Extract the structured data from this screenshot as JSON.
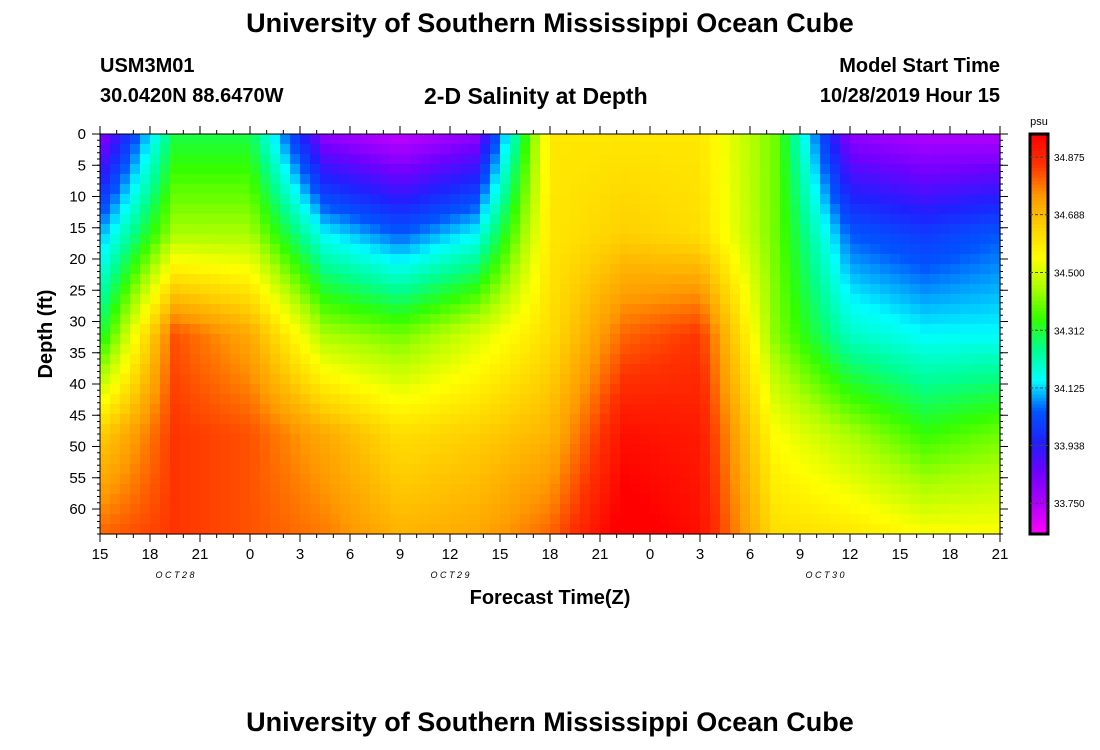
{
  "header": {
    "title": "University of Southern Mississippi Ocean Cube",
    "station_id": "USM3M01",
    "station_coords": "30.0420N 88.6470W",
    "plot_title": "2-D Salinity at Depth",
    "start_label": "Model Start Time",
    "start_value": "10/28/2019 Hour 15"
  },
  "footer": {
    "title": "University of Southern Mississippi Ocean Cube"
  },
  "chart_data": {
    "type": "heatmap",
    "title": "2-D Salinity at Depth",
    "xlabel": "Forecast Time(Z)",
    "ylabel": "Depth (ft)",
    "x_range_hours": [
      0,
      54
    ],
    "x_tick_labels": [
      "15",
      "18",
      "21",
      "0",
      "3",
      "6",
      "9",
      "12",
      "15",
      "18",
      "21",
      "0",
      "3",
      "6",
      "9",
      "12",
      "15",
      "18",
      "21"
    ],
    "date_labels": [
      {
        "label": "OCT 28",
        "hour": 4.5
      },
      {
        "label": "OCT 29",
        "hour": 21
      },
      {
        "label": "OCT 30",
        "hour": 43.5
      }
    ],
    "ylim": [
      0,
      64
    ],
    "y_ticks": [
      0,
      5,
      10,
      15,
      20,
      25,
      30,
      35,
      40,
      45,
      50,
      55,
      60
    ],
    "colorbar": {
      "unit": "psu",
      "min": 33.65,
      "max": 34.95,
      "tick_values": [
        34.875,
        34.688,
        34.5,
        34.312,
        34.125,
        33.938,
        33.75
      ],
      "tick_labels": [
        "34.875",
        "34.688",
        "34.500",
        "34.312",
        "34.125",
        "33.938",
        "33.750"
      ],
      "colors": [
        "#ff00ff",
        "#b000ff",
        "#7000ff",
        "#2020ff",
        "#0055ff",
        "#00ffff",
        "#00ff90",
        "#33ff00",
        "#aaff00",
        "#ffff00",
        "#ffd000",
        "#ff9900",
        "#ff3300",
        "#ff0000"
      ]
    },
    "gridded_values": {
      "depths_ft": [
        0,
        16,
        32,
        48,
        64
      ],
      "times_h": [
        0,
        4.5,
        9,
        13.5,
        18,
        22.5,
        27,
        31.5,
        36,
        40.5,
        45,
        49.5,
        54
      ],
      "rows": [
        [
          33.8,
          34.3,
          34.3,
          33.8,
          33.72,
          33.8,
          34.6,
          34.6,
          34.6,
          34.4,
          33.8,
          33.75,
          33.75
        ],
        [
          34.1,
          34.45,
          34.45,
          34.15,
          34.05,
          34.15,
          34.6,
          34.65,
          34.62,
          34.4,
          34.05,
          34.0,
          34.05
        ],
        [
          34.3,
          34.82,
          34.72,
          34.45,
          34.4,
          34.5,
          34.62,
          34.8,
          34.85,
          34.42,
          34.2,
          34.15,
          34.15
        ],
        [
          34.65,
          34.85,
          34.82,
          34.72,
          34.62,
          34.65,
          34.7,
          34.92,
          34.9,
          34.55,
          34.45,
          34.35,
          34.4
        ],
        [
          34.8,
          34.85,
          34.82,
          34.78,
          34.7,
          34.72,
          34.8,
          34.98,
          34.92,
          34.62,
          34.6,
          34.55,
          34.55
        ]
      ]
    }
  }
}
